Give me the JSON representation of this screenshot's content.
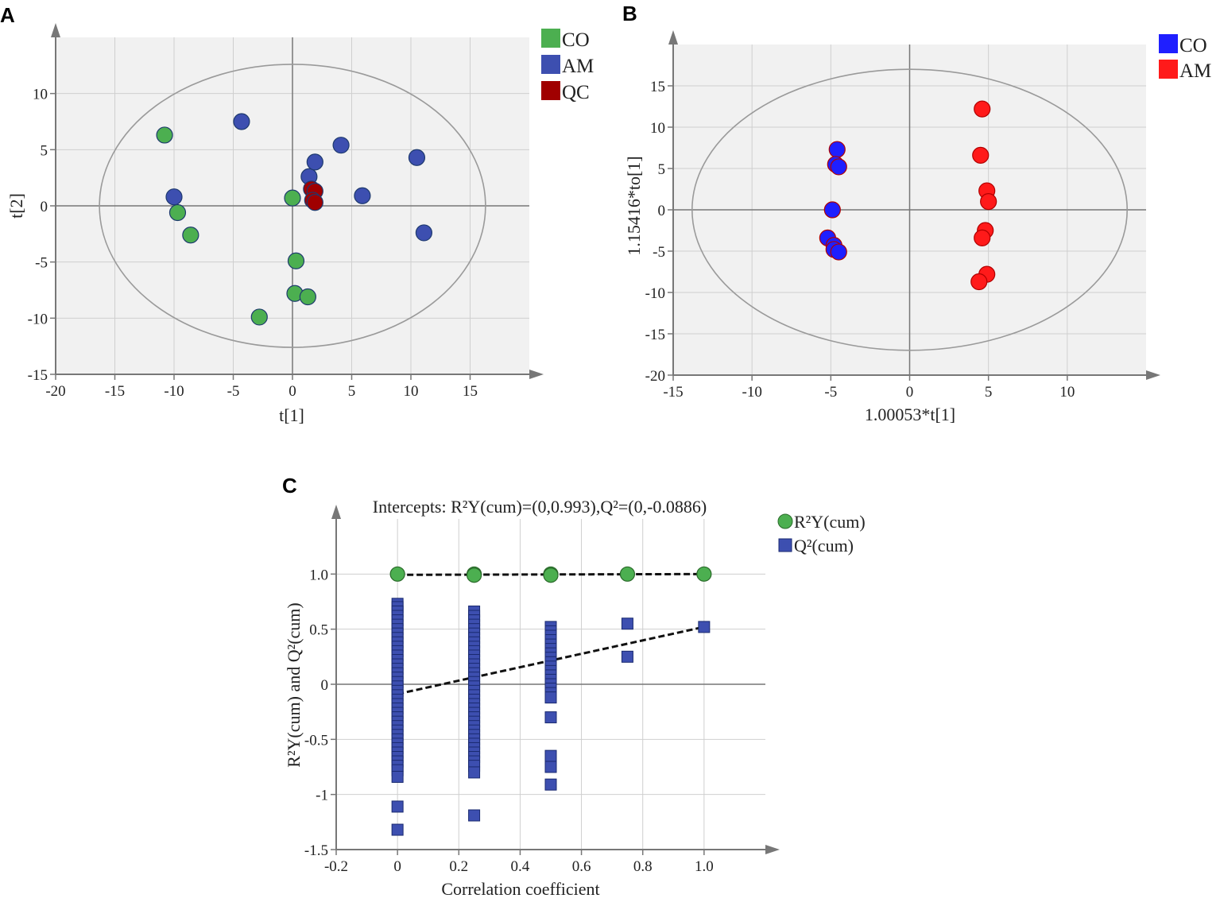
{
  "chart_data": [
    {
      "panel": "A",
      "type": "scatter",
      "xlabel": "t[1]",
      "ylabel": "t[2]",
      "xlim": [
        -20,
        20
      ],
      "ylim": [
        -15,
        15
      ],
      "x_ticks": [
        -20,
        -15,
        -10,
        -5,
        0,
        5,
        10,
        15
      ],
      "y_ticks": [
        10,
        5,
        0,
        -5,
        -10,
        -15
      ],
      "grid": true,
      "ellipse": {
        "center": [
          0,
          0
        ],
        "rx": 16.3,
        "ry": 12.6
      },
      "legend_position": "top-right outside",
      "series": [
        {
          "name": "CO",
          "color": "#4caf50",
          "marker": "circle",
          "points": [
            [
              -10.8,
              6.3
            ],
            [
              -9.7,
              -0.6
            ],
            [
              -8.6,
              -2.6
            ],
            [
              0,
              0.7
            ],
            [
              0.3,
              -4.9
            ],
            [
              0.2,
              -7.8
            ],
            [
              1.3,
              -8.1
            ],
            [
              -2.8,
              -9.9
            ]
          ]
        },
        {
          "name": "AM",
          "color": "#3d4fb0",
          "marker": "circle",
          "points": [
            [
              -4.3,
              7.5
            ],
            [
              -10.0,
              0.8
            ],
            [
              1.4,
              2.6
            ],
            [
              1.9,
              3.9
            ],
            [
              4.1,
              5.4
            ],
            [
              5.9,
              0.9
            ],
            [
              10.5,
              4.3
            ],
            [
              11.1,
              -2.4
            ]
          ]
        },
        {
          "name": "QC",
          "color": "#a00000",
          "marker": "circle",
          "points": [
            [
              1.6,
              1.5
            ],
            [
              1.9,
              1.3
            ],
            [
              1.7,
              0.5
            ],
            [
              1.9,
              0.3
            ]
          ]
        }
      ]
    },
    {
      "panel": "B",
      "type": "scatter",
      "xlabel": "1.00053*t[1]",
      "ylabel": "1.15416*to[1]",
      "xlim": [
        -15,
        15
      ],
      "ylim": [
        -20,
        20
      ],
      "x_ticks": [
        -15,
        -10,
        -5,
        0,
        5,
        10
      ],
      "y_ticks": [
        15,
        10,
        5,
        0,
        -5,
        -10,
        -15,
        -20
      ],
      "grid": true,
      "ellipse": {
        "center": [
          0,
          0
        ],
        "rx": 13.8,
        "ry": 17.0
      },
      "legend_position": "top-right outside",
      "series": [
        {
          "name": "CO",
          "color": "#1f1fff",
          "marker": "circle",
          "points": [
            [
              -4.6,
              7.3
            ],
            [
              -4.7,
              5.5
            ],
            [
              -4.5,
              5.2
            ],
            [
              -4.9,
              0
            ],
            [
              -5.2,
              -3.4
            ],
            [
              -4.8,
              -4.3
            ],
            [
              -4.8,
              -4.8
            ],
            [
              -4.5,
              -5.1
            ]
          ]
        },
        {
          "name": "AM",
          "color": "#ff1a1a",
          "marker": "circle",
          "points": [
            [
              4.6,
              12.2
            ],
            [
              4.5,
              6.6
            ],
            [
              4.9,
              2.3
            ],
            [
              5.0,
              1.0
            ],
            [
              4.8,
              -2.5
            ],
            [
              4.6,
              -3.4
            ],
            [
              4.9,
              -7.8
            ],
            [
              4.4,
              -8.7
            ]
          ]
        }
      ]
    },
    {
      "panel": "C",
      "type": "scatter",
      "title": "Intercepts: R²Y(cum)=(0,0.993),Q²=(0,-0.0886)",
      "xlabel": "Correlation coefficient",
      "ylabel": "R²Y(cum) and Q²(cum)",
      "xlim": [
        -0.2,
        1.2
      ],
      "ylim": [
        -1.5,
        1.5
      ],
      "x_ticks": [
        "-0.2",
        "0",
        "0.2",
        "0.4",
        "0.6",
        "0.8",
        "1.0"
      ],
      "y_ticks": [
        "1.0",
        "0.5",
        "0",
        "-0.5",
        "-1",
        "-1.5"
      ],
      "grid": true,
      "legend_position": "top-right outside",
      "regression_lines": [
        {
          "name": "R²Y(cum) fit",
          "from": [
            0,
            0.993
          ],
          "to": [
            1.0,
            1.0
          ],
          "style": "dashed"
        },
        {
          "name": "Q²(cum) fit",
          "from": [
            0,
            -0.0886
          ],
          "to": [
            1.0,
            0.52
          ],
          "style": "dashed"
        }
      ],
      "series": [
        {
          "name": "R²Y(cum)",
          "color": "#4caf50",
          "marker": "circle",
          "points": [
            [
              0,
              1.0
            ],
            [
              0.25,
              1.0
            ],
            [
              0.25,
              0.99
            ],
            [
              0.5,
              1.0
            ],
            [
              0.5,
              0.99
            ],
            [
              0.75,
              1.0
            ],
            [
              1.0,
              1.0
            ]
          ]
        },
        {
          "name": "Q²(cum)",
          "color": "#3d4fb0",
          "marker": "square",
          "points": [
            [
              0,
              0.73
            ],
            [
              0,
              0.7
            ],
            [
              0,
              0.66
            ],
            [
              0,
              0.62
            ],
            [
              0,
              0.58
            ],
            [
              0,
              0.54
            ],
            [
              0,
              0.5
            ],
            [
              0,
              0.46
            ],
            [
              0,
              0.42
            ],
            [
              0,
              0.38
            ],
            [
              0,
              0.34
            ],
            [
              0,
              0.3
            ],
            [
              0,
              0.26
            ],
            [
              0,
              0.22
            ],
            [
              0,
              0.18
            ],
            [
              0,
              0.14
            ],
            [
              0,
              0.1
            ],
            [
              0,
              0.06
            ],
            [
              0,
              0.02
            ],
            [
              0,
              -0.02
            ],
            [
              0,
              -0.06
            ],
            [
              0,
              -0.1
            ],
            [
              0,
              -0.14
            ],
            [
              0,
              -0.18
            ],
            [
              0,
              -0.22
            ],
            [
              0,
              -0.26
            ],
            [
              0,
              -0.3
            ],
            [
              0,
              -0.34
            ],
            [
              0,
              -0.38
            ],
            [
              0,
              -0.42
            ],
            [
              0,
              -0.46
            ],
            [
              0,
              -0.5
            ],
            [
              0,
              -0.54
            ],
            [
              0,
              -0.58
            ],
            [
              0,
              -0.62
            ],
            [
              0,
              -0.66
            ],
            [
              0,
              -0.7
            ],
            [
              0,
              -0.74
            ],
            [
              0,
              -0.78
            ],
            [
              0,
              -0.84
            ],
            [
              0,
              -1.11
            ],
            [
              0,
              -1.32
            ],
            [
              0.25,
              0.66
            ],
            [
              0.25,
              0.62
            ],
            [
              0.25,
              0.58
            ],
            [
              0.25,
              0.54
            ],
            [
              0.25,
              0.5
            ],
            [
              0.25,
              0.46
            ],
            [
              0.25,
              0.42
            ],
            [
              0.25,
              0.38
            ],
            [
              0.25,
              0.34
            ],
            [
              0.25,
              0.3
            ],
            [
              0.25,
              0.26
            ],
            [
              0.25,
              0.22
            ],
            [
              0.25,
              0.18
            ],
            [
              0.25,
              0.14
            ],
            [
              0.25,
              0.1
            ],
            [
              0.25,
              0.06
            ],
            [
              0.25,
              0.02
            ],
            [
              0.25,
              -0.02
            ],
            [
              0.25,
              -0.06
            ],
            [
              0.25,
              -0.1
            ],
            [
              0.25,
              -0.14
            ],
            [
              0.25,
              -0.18
            ],
            [
              0.25,
              -0.22
            ],
            [
              0.25,
              -0.26
            ],
            [
              0.25,
              -0.3
            ],
            [
              0.25,
              -0.34
            ],
            [
              0.25,
              -0.38
            ],
            [
              0.25,
              -0.42
            ],
            [
              0.25,
              -0.46
            ],
            [
              0.25,
              -0.5
            ],
            [
              0.25,
              -0.54
            ],
            [
              0.25,
              -0.58
            ],
            [
              0.25,
              -0.62
            ],
            [
              0.25,
              -0.66
            ],
            [
              0.25,
              -0.7
            ],
            [
              0.25,
              -0.74
            ],
            [
              0.25,
              -0.8
            ],
            [
              0.25,
              -1.19
            ],
            [
              0.5,
              0.52
            ],
            [
              0.5,
              0.48
            ],
            [
              0.5,
              0.44
            ],
            [
              0.5,
              0.4
            ],
            [
              0.5,
              0.36
            ],
            [
              0.5,
              0.32
            ],
            [
              0.5,
              0.28
            ],
            [
              0.5,
              0.24
            ],
            [
              0.5,
              0.2
            ],
            [
              0.5,
              0.16
            ],
            [
              0.5,
              0.12
            ],
            [
              0.5,
              0.08
            ],
            [
              0.5,
              0.04
            ],
            [
              0.5,
              0
            ],
            [
              0.5,
              -0.04
            ],
            [
              0.5,
              -0.08
            ],
            [
              0.5,
              -0.12
            ],
            [
              0.5,
              -0.3
            ],
            [
              0.5,
              -0.65
            ],
            [
              0.5,
              -0.75
            ],
            [
              0.5,
              -0.91
            ],
            [
              0.75,
              0.55
            ],
            [
              0.75,
              0.25
            ],
            [
              1.0,
              0.52
            ]
          ]
        }
      ]
    }
  ]
}
